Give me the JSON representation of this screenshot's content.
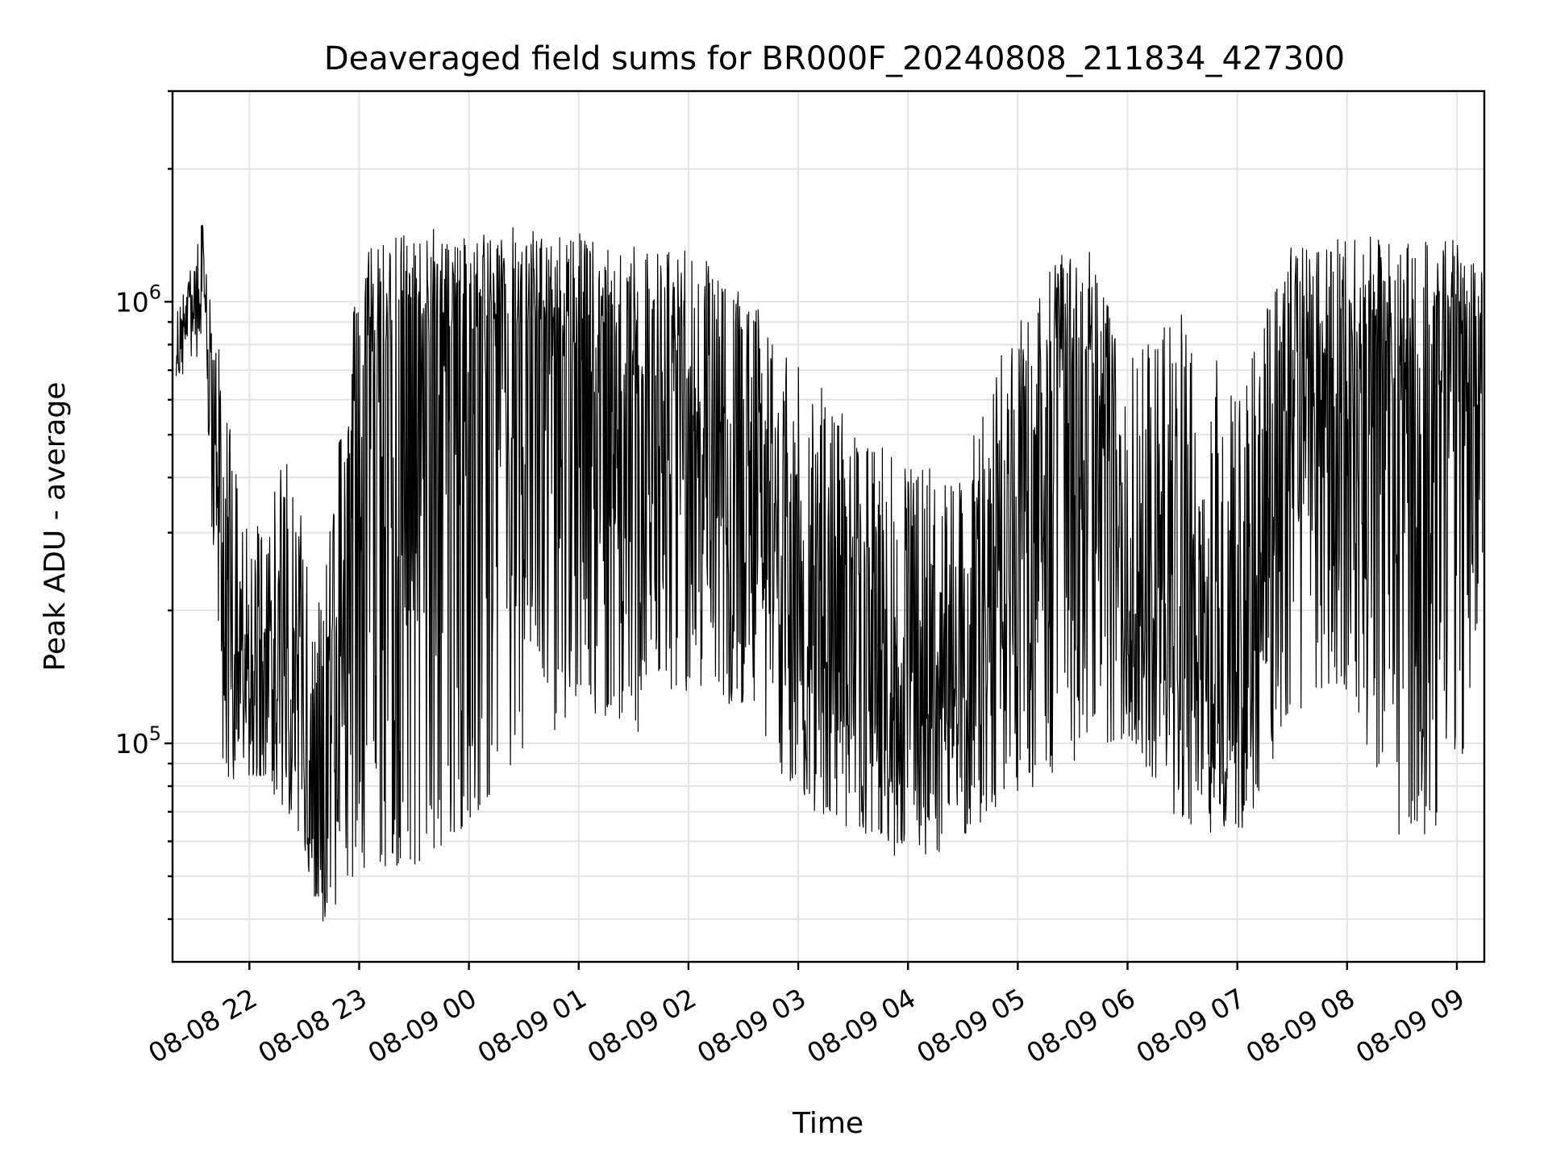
{
  "chart_data": {
    "type": "line",
    "title": "Deaveraged field sums for BR000F_20240808_211834_427300",
    "xlabel": "Time",
    "ylabel": "Peak ADU - average",
    "yscale": "log",
    "ylim": [
      32000,
      3000000
    ],
    "xlim": [
      "2024-08-08 21:18",
      "2024-08-09 09:15"
    ],
    "grid": true,
    "line_color": "#000000",
    "x_ticks": [
      "08-08 22",
      "08-08 23",
      "08-09 00",
      "08-09 01",
      "08-09 02",
      "08-09 03",
      "08-09 04",
      "08-09 05",
      "08-09 06",
      "08-09 07",
      "08-09 08",
      "08-09 09"
    ],
    "y_tick_labels": [
      {
        "value": 100000,
        "base": "10",
        "exp": "5"
      },
      {
        "value": 1000000,
        "base": "10",
        "exp": "6"
      }
    ],
    "series": [
      {
        "envelope": {
          "x": [
            "2024-08-08 21:20",
            "2024-08-08 21:35",
            "2024-08-08 21:45",
            "2024-08-08 22:00",
            "2024-08-08 22:20",
            "2024-08-08 22:40",
            "2024-08-08 23:00",
            "2024-08-08 23:30",
            "2024-08-09 00:00",
            "2024-08-09 00:30",
            "2024-08-09 01:00",
            "2024-08-09 01:30",
            "2024-08-09 02:00",
            "2024-08-09 02:30",
            "2024-08-09 03:00",
            "2024-08-09 03:30",
            "2024-08-09 04:00",
            "2024-08-09 04:30",
            "2024-08-09 04:50",
            "2024-08-09 05:20",
            "2024-08-09 05:40",
            "2024-08-09 06:00",
            "2024-08-09 06:30",
            "2024-08-09 07:00",
            "2024-08-09 07:30",
            "2024-08-09 08:00",
            "2024-08-09 08:30",
            "2024-08-09 09:00",
            "2024-08-09 09:14"
          ],
          "high": [
            950000,
            1600000,
            700000,
            280000,
            450000,
            200000,
            1350000,
            1400000,
            1350000,
            1400000,
            1400000,
            1350000,
            1300000,
            1000000,
            700000,
            500000,
            400000,
            400000,
            700000,
            1200000,
            1250000,
            700000,
            900000,
            600000,
            1300000,
            1350000,
            1300000,
            1300000,
            1200000
          ],
          "typical": [
            750000,
            1150000,
            250000,
            150000,
            130000,
            75000,
            650000,
            900000,
            850000,
            900000,
            800000,
            700000,
            550000,
            320000,
            180000,
            140000,
            130000,
            120000,
            180000,
            600000,
            700000,
            200000,
            160000,
            120000,
            500000,
            700000,
            650000,
            600000,
            600000
          ],
          "low": [
            650000,
            850000,
            90000,
            85000,
            75000,
            40000,
            52000,
            55000,
            65000,
            95000,
            130000,
            110000,
            140000,
            120000,
            80000,
            62000,
            58000,
            62000,
            75000,
            90000,
            95000,
            100000,
            68000,
            62000,
            120000,
            140000,
            60000,
            75000,
            250000
          ]
        }
      }
    ]
  }
}
